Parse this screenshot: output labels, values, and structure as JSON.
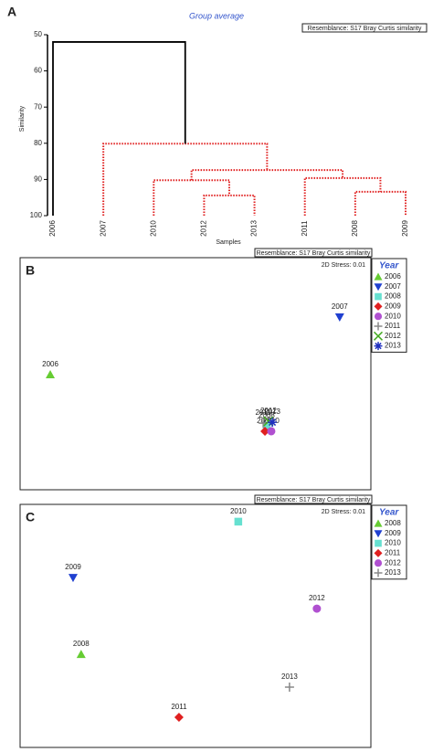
{
  "chart_data": [
    {
      "type": "dendrogram",
      "panel_label": "A",
      "title": "Group average",
      "resemblance": "Resemblance: S17 Bray Curtis similarity",
      "y_label": "Similarity",
      "x_label": "Samples",
      "categories": [
        "2006",
        "2007",
        "2010",
        "2012",
        "2013",
        "2011",
        "2008",
        "2009"
      ],
      "ylim": [
        50,
        100
      ],
      "yticks": [
        50,
        60,
        70,
        80,
        90,
        100
      ],
      "merges": [
        {
          "left": 3,
          "right": 4,
          "height": 94.4,
          "color": "#e02020",
          "dashed": true
        },
        {
          "left": 6,
          "right": 7,
          "height": 93.4,
          "color": "#e02020",
          "dashed": true
        },
        {
          "left": 2,
          "right": 8,
          "height": 90.2,
          "color": "#e02020",
          "dashed": true
        },
        {
          "left": 5,
          "right": 9,
          "height": 89.6,
          "color": "#e02020",
          "dashed": true
        },
        {
          "left": 10,
          "right": 11,
          "height": 87.4,
          "color": "#e02020",
          "dashed": true
        },
        {
          "left": 1,
          "right": 12,
          "height": 80.1,
          "color": "#e02020",
          "dashed": true
        },
        {
          "left": 0,
          "right": 13,
          "height": 52.0,
          "color": "#000000",
          "dashed": false
        }
      ]
    },
    {
      "type": "scatter",
      "panel_label": "B",
      "resemblance": "Resemblance: S17 Bray Curtis similarity",
      "stress": "2D Stress: 0.01",
      "legend_title": "Year",
      "xlim": [
        0,
        100
      ],
      "ylim": [
        0,
        100
      ],
      "series": [
        {
          "name": "2006",
          "color": "#66cc33",
          "marker": "triangle-up",
          "x": [
            8.6
          ],
          "y": [
            49.6
          ]
        },
        {
          "name": "2007",
          "color": "#2040d0",
          "marker": "triangle-down",
          "x": [
            91.1
          ],
          "y": [
            74.4
          ]
        },
        {
          "name": "2008",
          "color": "#66e0d0",
          "marker": "square",
          "x": [
            70.3
          ],
          "y": [
            27.6
          ]
        },
        {
          "name": "2009",
          "color": "#e02020",
          "marker": "diamond",
          "x": [
            69.8
          ],
          "y": [
            25.2
          ]
        },
        {
          "name": "2010",
          "color": "#b050d0",
          "marker": "circle",
          "x": [
            71.6
          ],
          "y": [
            25.2
          ]
        },
        {
          "name": "2011",
          "color": "#888888",
          "marker": "plus",
          "x": [
            69.3
          ],
          "y": [
            28.7
          ]
        },
        {
          "name": "2012",
          "color": "#44aa22",
          "marker": "cross",
          "x": [
            70.8
          ],
          "y": [
            29.5
          ]
        },
        {
          "name": "2013",
          "color": "#2030c0",
          "marker": "star",
          "x": [
            71.9
          ],
          "y": [
            29.1
          ]
        }
      ]
    },
    {
      "type": "scatter",
      "panel_label": "C",
      "resemblance": "Resemblance: S17 Bray Curtis similarity",
      "stress": "2D Stress: 0.01",
      "legend_title": "Year",
      "xlim": [
        0,
        100
      ],
      "ylim": [
        0,
        100
      ],
      "series": [
        {
          "name": "2008",
          "color": "#66cc33",
          "marker": "triangle-up",
          "x": [
            17.4
          ],
          "y": [
            38.3
          ]
        },
        {
          "name": "2009",
          "color": "#2040d0",
          "marker": "triangle-down",
          "x": [
            15.1
          ],
          "y": [
            69.9
          ]
        },
        {
          "name": "2010",
          "color": "#66e0d0",
          "marker": "square",
          "x": [
            62.2
          ],
          "y": [
            92.9
          ]
        },
        {
          "name": "2011",
          "color": "#e02020",
          "marker": "diamond",
          "x": [
            45.3
          ],
          "y": [
            12.4
          ]
        },
        {
          "name": "2012",
          "color": "#b050d0",
          "marker": "circle",
          "x": [
            84.6
          ],
          "y": [
            57.1
          ]
        },
        {
          "name": "2013",
          "color": "#888888",
          "marker": "plus",
          "x": [
            76.8
          ],
          "y": [
            24.8
          ]
        }
      ]
    }
  ]
}
